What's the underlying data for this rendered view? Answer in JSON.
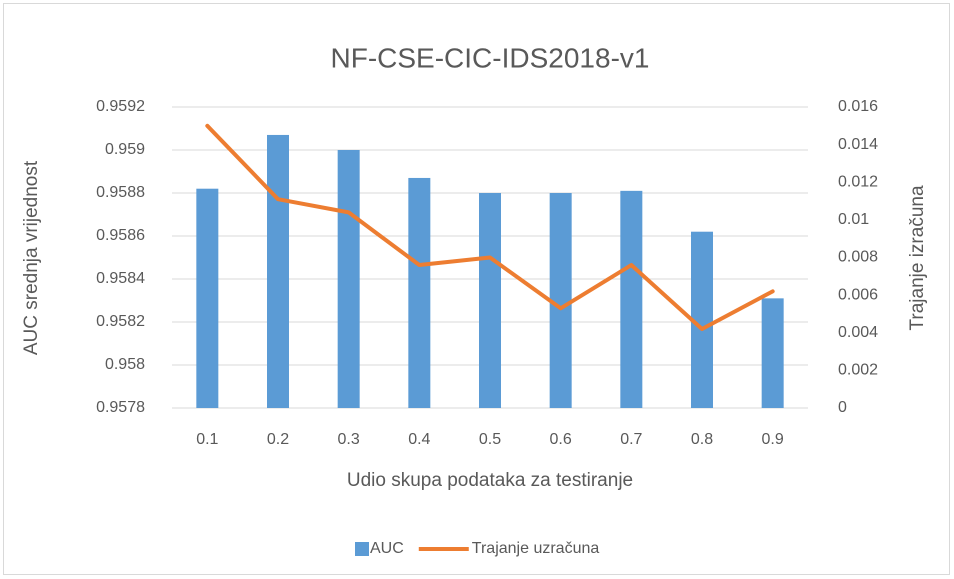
{
  "chart_data": {
    "type": "bar_line",
    "title": "NF-CSE-CIC-IDS2018-v1",
    "x_label": "Udio skupa podataka za testiranje",
    "y_label": "AUC srednja vrijednost",
    "y2_label": "Trajanje izračuna",
    "categories": [
      "0.1",
      "0.2",
      "0.3",
      "0.4",
      "0.5",
      "0.6",
      "0.7",
      "0.8",
      "0.9"
    ],
    "series": [
      {
        "name": "AUC",
        "type": "bar",
        "color": "#5b9bd5",
        "values": [
          0.95882,
          0.95907,
          0.959,
          0.95887,
          0.9588,
          0.9588,
          0.95881,
          0.95862,
          0.95831
        ]
      },
      {
        "name": "Trajanje uzračuna",
        "type": "line",
        "axis": "y2",
        "color": "#ed7d31",
        "values": [
          0.015,
          0.0111,
          0.0104,
          0.0076,
          0.008,
          0.0053,
          0.0076,
          0.0042,
          0.0062
        ]
      }
    ],
    "ylim": [
      0.9578,
      0.9592
    ],
    "yticks": [
      0.9578,
      0.958,
      0.9582,
      0.9584,
      0.9586,
      0.9588,
      0.959,
      0.9592
    ],
    "y2lim": [
      0,
      0.016
    ],
    "y2ticks": [
      0,
      0.002,
      0.004,
      0.006,
      0.008,
      0.01,
      0.012,
      0.014,
      0.016
    ],
    "grid": true,
    "legend": "bottom"
  }
}
